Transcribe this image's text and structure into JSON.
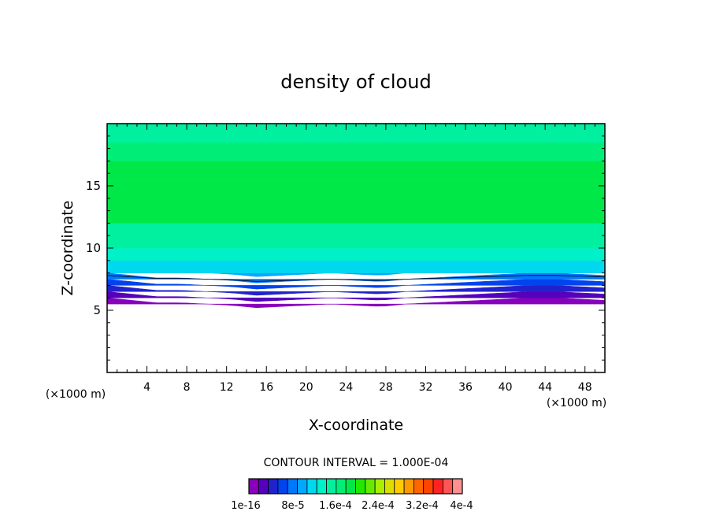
{
  "chart_data": {
    "type": "heatmap",
    "title": "density of cloud",
    "xlabel": "X-coordinate",
    "ylabel": "Z-coordinate",
    "x_unit": "(×1000 m)",
    "xlim": [
      0,
      50
    ],
    "ylim": [
      0,
      20
    ],
    "x_ticks": [
      "4",
      "8",
      "12",
      "16",
      "20",
      "24",
      "28",
      "32",
      "36",
      "40",
      "44",
      "48"
    ],
    "y_ticks": [
      "5",
      "10",
      "15"
    ],
    "contour_interval_text": "CONTOUR INTERVAL = 1.000E-04",
    "colorbar_labels": [
      "1e-16",
      "8e-5",
      "1.6e-4",
      "2.4e-4",
      "3.2e-4",
      "4e-4"
    ],
    "colorbar_colors": [
      "#8800bb",
      "#5500bb",
      "#2222cc",
      "#0044ee",
      "#0077ff",
      "#00a8ff",
      "#00d8f0",
      "#00f0c8",
      "#00f0a0",
      "#00ee78",
      "#00e848",
      "#22e800",
      "#66ea00",
      "#aaee00",
      "#dddd00",
      "#ffcc00",
      "#ff9900",
      "#ff6600",
      "#ff4400",
      "#ff2222",
      "#ff5555",
      "#ff9090"
    ],
    "field_profile": {
      "z": [
        5.0,
        5.5,
        6.0,
        6.5,
        7.0,
        7.5,
        8.0,
        9.0,
        10.0,
        12.0,
        15.5,
        17.0,
        18.5,
        20.0
      ],
      "level_index": [
        0,
        1,
        2,
        3,
        4,
        5,
        6,
        7,
        8,
        10,
        10,
        9,
        8,
        7
      ]
    },
    "cloud_base_z": [
      6.0,
      5.8,
      5.6,
      5.6,
      5.5,
      5.4,
      5.2,
      5.3,
      5.4,
      5.5,
      5.4,
      5.3,
      5.5,
      5.6,
      5.7,
      5.8,
      5.9,
      6.0,
      6.0,
      5.9,
      5.8
    ],
    "cloud_base_x": [
      0,
      2.5,
      5,
      7.5,
      10,
      12.5,
      15,
      17.5,
      20,
      22.5,
      25,
      27.5,
      30,
      32.5,
      35,
      37.5,
      40,
      42.5,
      45,
      47.5,
      50
    ]
  }
}
